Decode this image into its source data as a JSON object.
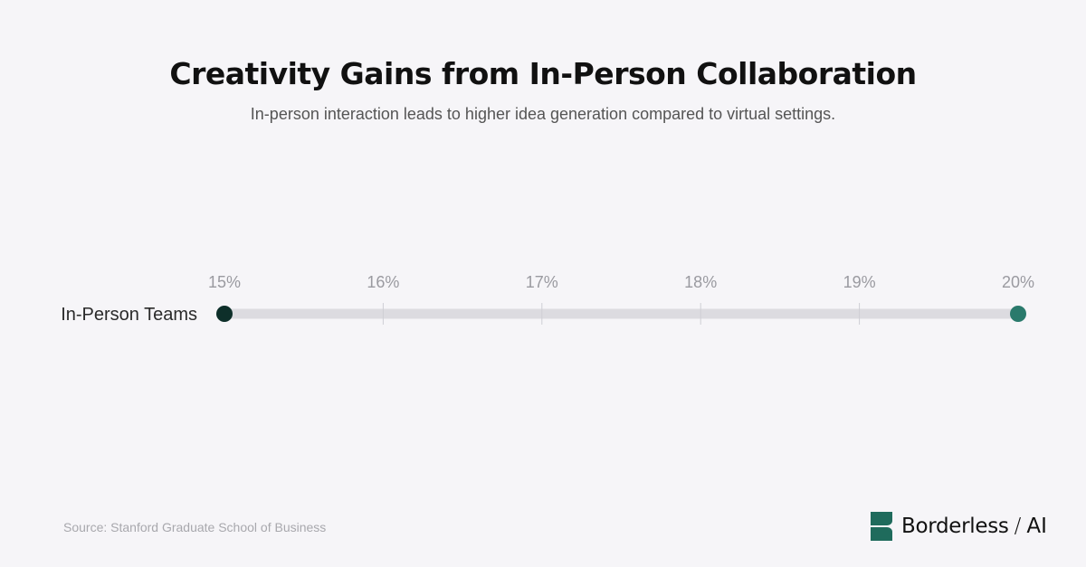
{
  "header": {
    "title": "Creativity Gains from In-Person Collaboration",
    "subtitle": "In-person interaction leads to higher idea generation compared to virtual settings."
  },
  "footer": {
    "source": "Source: Stanford Graduate School of Business",
    "brand_name": "Borderless",
    "brand_separator": "/",
    "brand_suffix": "AI",
    "brand_color": "#1f6b5c"
  },
  "chart_data": {
    "type": "dumbbell",
    "categories": [
      "In-Person Teams"
    ],
    "series": [
      {
        "values": [
          15
        ],
        "color": "#0e2f2a"
      },
      {
        "values": [
          20
        ],
        "color": "#2a7a6c"
      }
    ],
    "xlim": [
      15,
      20
    ],
    "ticks": [
      "15%",
      "16%",
      "17%",
      "18%",
      "19%",
      "20%"
    ],
    "grid": true,
    "track_color": "#dcdbe0"
  }
}
